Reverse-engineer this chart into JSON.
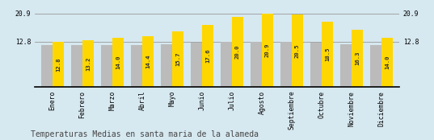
{
  "categories": [
    "Enero",
    "Febrero",
    "Marzo",
    "Abril",
    "Mayo",
    "Junio",
    "Julio",
    "Agosto",
    "Septiembre",
    "Octubre",
    "Noviembre",
    "Diciembre"
  ],
  "values": [
    12.8,
    13.2,
    14.0,
    14.4,
    15.7,
    17.6,
    20.0,
    20.9,
    20.5,
    18.5,
    16.3,
    14.0
  ],
  "gray_values": [
    11.8,
    11.8,
    11.8,
    11.8,
    12.2,
    12.5,
    12.8,
    12.8,
    12.8,
    12.5,
    12.2,
    11.8
  ],
  "bar_color_yellow": "#FFD700",
  "bar_color_gray": "#BBBBBB",
  "background_color": "#D6E8F0",
  "title": "Temperaturas Medias en santa maria de la alameda",
  "ylim_max": 23.5,
  "yticks": [
    12.8,
    20.9
  ],
  "bar_width": 0.38,
  "title_fontsize": 7.0,
  "tick_fontsize": 5.8,
  "value_fontsize": 5.2,
  "spine_color": "#000000",
  "grid_color": "#999999"
}
